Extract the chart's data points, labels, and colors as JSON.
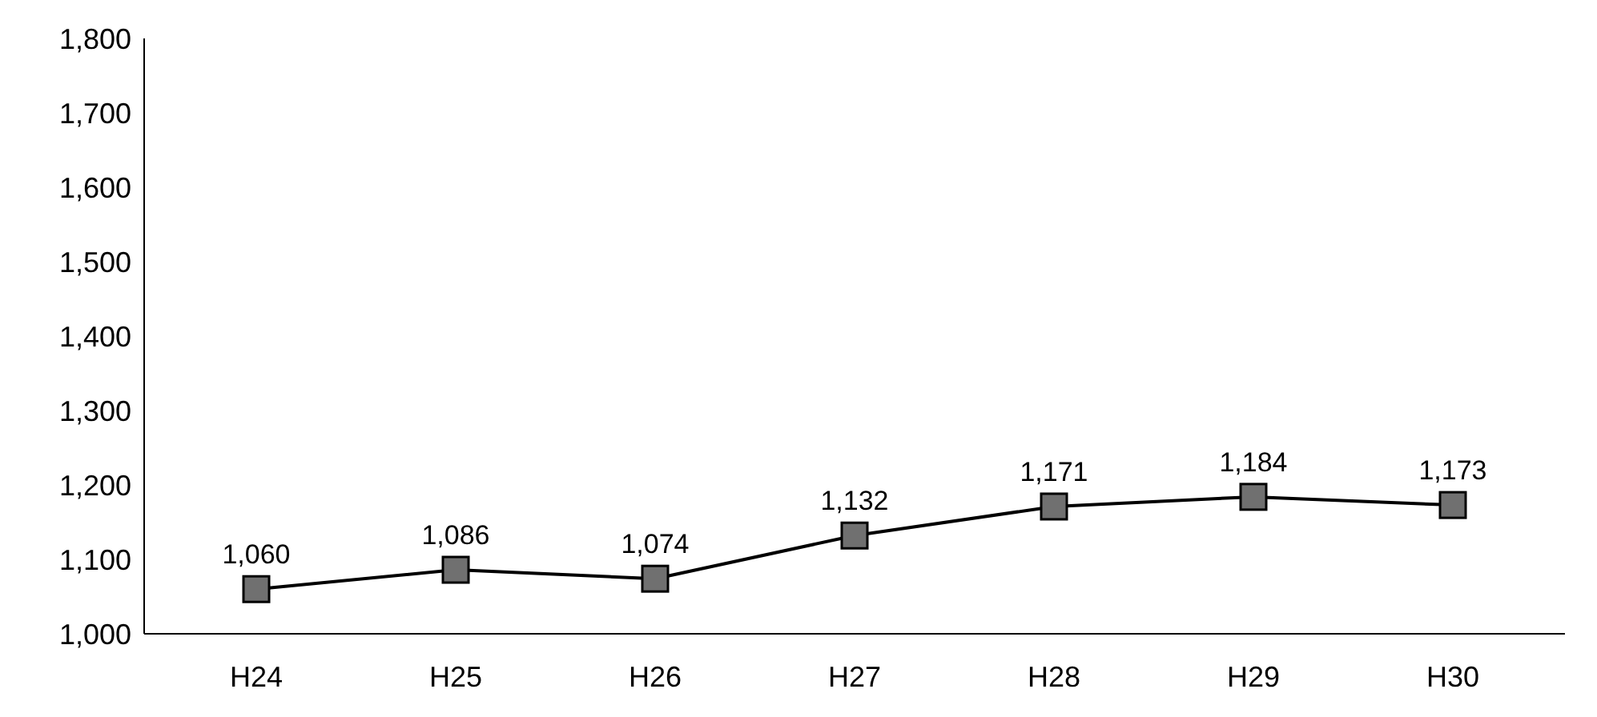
{
  "chart_data": {
    "type": "line",
    "categories": [
      "H24",
      "H25",
      "H26",
      "H27",
      "H28",
      "H29",
      "H30"
    ],
    "series": [
      {
        "color": "#000000",
        "values": [
          1060,
          1086,
          1074,
          1132,
          1171,
          1184,
          1173
        ]
      }
    ],
    "ylim": [
      1000,
      1800
    ],
    "yticks": [
      {
        "value": 1000,
        "label": "1,000"
      },
      {
        "value": 1100,
        "label": "1,100"
      },
      {
        "value": 1200,
        "label": "1,200"
      },
      {
        "value": 1300,
        "label": "1,300"
      },
      {
        "value": 1400,
        "label": "1,400"
      },
      {
        "value": 1500,
        "label": "1,500"
      },
      {
        "value": 1600,
        "label": "1,600"
      },
      {
        "value": 1700,
        "label": "1,700"
      },
      {
        "value": 1800,
        "label": "1,800"
      }
    ],
    "value_labels": [
      "1,060",
      "1,086",
      "1,074",
      "1,132",
      "1,171",
      "1,184",
      "1,173"
    ],
    "marker": "square",
    "line_style": "solid",
    "grid": false
  }
}
